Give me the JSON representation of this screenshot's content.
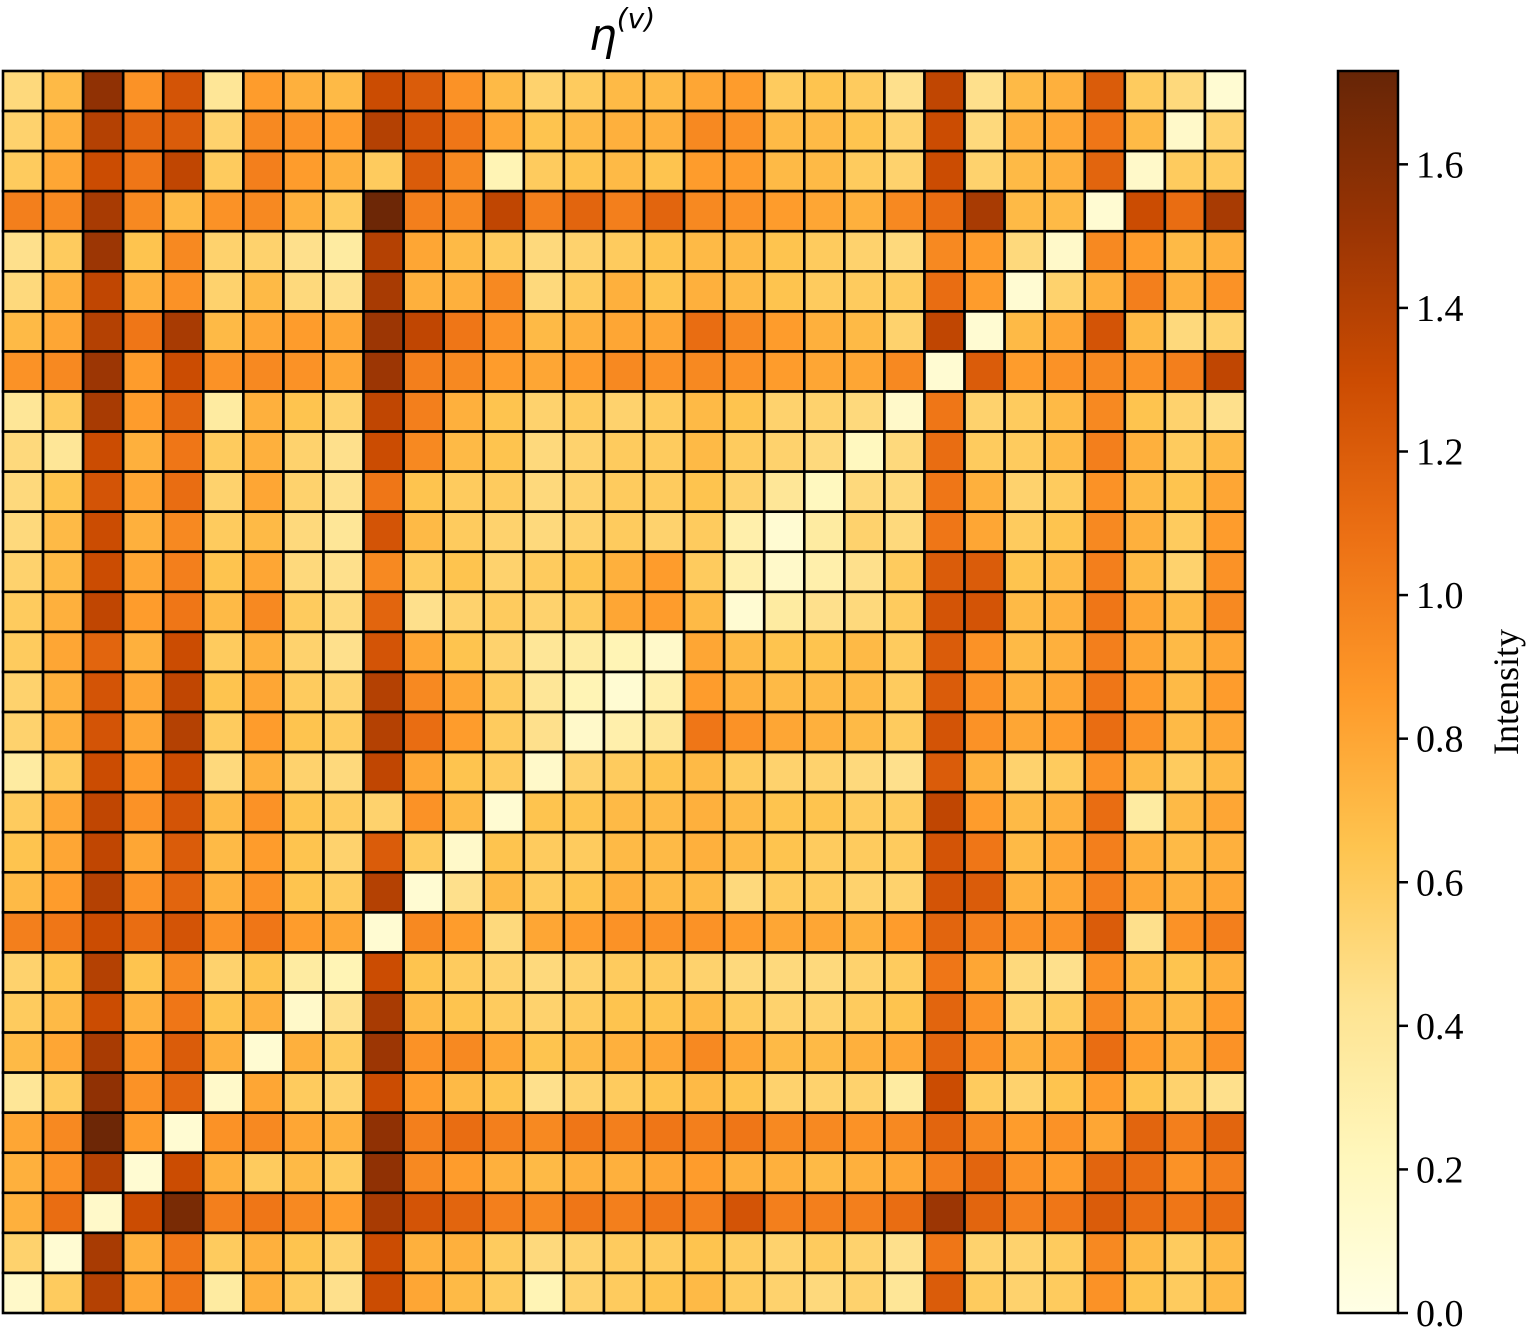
{
  "chart_data": {
    "type": "heatmap",
    "title": "η(v)",
    "title_main": "η",
    "title_sup": "(v)",
    "rows": 31,
    "cols": 31,
    "vmin": 0.0,
    "vmax": 1.73,
    "colormap": "YlOrBr",
    "colorbar": {
      "label": "Intensity",
      "ticks": [
        0.0,
        0.2,
        0.4,
        0.6,
        0.8,
        1.0,
        1.2,
        1.4,
        1.6
      ],
      "tick_labels": [
        "0.0",
        "0.2",
        "0.4",
        "0.6",
        "0.8",
        "1.0",
        "1.2",
        "1.4",
        "1.6"
      ]
    },
    "values": [
      [
        0.5,
        0.7,
        1.55,
        0.9,
        1.25,
        0.4,
        0.85,
        0.75,
        0.7,
        1.3,
        1.2,
        0.9,
        0.7,
        0.55,
        0.6,
        0.7,
        0.7,
        0.8,
        0.85,
        0.6,
        0.65,
        0.6,
        0.45,
        1.35,
        0.45,
        0.7,
        0.75,
        1.2,
        0.6,
        0.5,
        0.1
      ],
      [
        0.55,
        0.75,
        1.4,
        1.15,
        1.2,
        0.55,
        0.95,
        0.9,
        0.85,
        1.4,
        1.25,
        1.05,
        0.8,
        0.65,
        0.7,
        0.75,
        0.75,
        0.95,
        0.9,
        0.7,
        0.7,
        0.65,
        0.55,
        1.3,
        0.5,
        0.75,
        0.8,
        1.05,
        0.7,
        0.15,
        0.55
      ],
      [
        0.6,
        0.8,
        1.3,
        1.05,
        1.35,
        0.6,
        1.0,
        0.85,
        0.75,
        0.6,
        1.2,
        0.95,
        0.25,
        0.6,
        0.65,
        0.7,
        0.65,
        0.85,
        0.85,
        0.7,
        0.7,
        0.6,
        0.55,
        1.3,
        0.55,
        0.7,
        0.75,
        1.15,
        0.15,
        0.6,
        0.6
      ],
      [
        1.0,
        0.95,
        1.45,
        0.95,
        0.7,
        0.9,
        0.95,
        0.75,
        0.6,
        1.7,
        1.0,
        0.95,
        1.35,
        1.0,
        1.15,
        1.0,
        1.15,
        0.95,
        0.9,
        0.85,
        0.8,
        0.75,
        0.95,
        1.1,
        1.45,
        0.7,
        0.7,
        0.1,
        1.3,
        1.1,
        1.45
      ],
      [
        0.45,
        0.6,
        1.5,
        0.65,
        0.95,
        0.55,
        0.55,
        0.45,
        0.35,
        1.4,
        0.8,
        0.7,
        0.6,
        0.5,
        0.55,
        0.6,
        0.65,
        0.7,
        0.7,
        0.65,
        0.6,
        0.55,
        0.5,
        0.95,
        0.85,
        0.5,
        0.15,
        0.95,
        0.85,
        0.7,
        0.75
      ],
      [
        0.5,
        0.75,
        1.35,
        0.75,
        0.9,
        0.55,
        0.7,
        0.5,
        0.45,
        1.45,
        0.75,
        0.75,
        0.95,
        0.5,
        0.6,
        0.75,
        0.65,
        0.75,
        0.7,
        0.65,
        0.6,
        0.6,
        0.6,
        1.1,
        0.85,
        0.1,
        0.55,
        0.75,
        1.0,
        0.75,
        0.9
      ],
      [
        0.7,
        0.8,
        1.4,
        1.05,
        1.45,
        0.7,
        0.8,
        0.85,
        0.8,
        1.5,
        1.35,
        1.05,
        0.9,
        0.7,
        0.75,
        0.8,
        0.8,
        1.1,
        0.95,
        0.85,
        0.75,
        0.7,
        0.55,
        1.35,
        0.1,
        0.7,
        0.8,
        1.25,
        0.7,
        0.5,
        0.55
      ],
      [
        0.9,
        0.95,
        1.5,
        0.85,
        1.3,
        0.9,
        0.95,
        0.9,
        0.8,
        1.5,
        1.0,
        0.95,
        0.85,
        0.8,
        0.85,
        0.95,
        0.9,
        0.95,
        0.9,
        0.85,
        0.8,
        0.8,
        0.95,
        0.1,
        1.2,
        0.85,
        0.9,
        0.95,
        0.9,
        1.0,
        1.35
      ],
      [
        0.4,
        0.6,
        1.45,
        0.85,
        1.15,
        0.35,
        0.75,
        0.65,
        0.55,
        1.35,
        1.0,
        0.75,
        0.65,
        0.55,
        0.6,
        0.55,
        0.6,
        0.7,
        0.65,
        0.55,
        0.55,
        0.5,
        0.15,
        1.05,
        0.55,
        0.6,
        0.7,
        0.95,
        0.65,
        0.55,
        0.45
      ],
      [
        0.5,
        0.4,
        1.3,
        0.75,
        1.05,
        0.6,
        0.75,
        0.55,
        0.45,
        1.3,
        0.95,
        0.7,
        0.65,
        0.5,
        0.55,
        0.6,
        0.6,
        0.7,
        0.6,
        0.55,
        0.5,
        0.2,
        0.5,
        1.1,
        0.6,
        0.6,
        0.7,
        1.0,
        0.75,
        0.6,
        0.7
      ],
      [
        0.5,
        0.65,
        1.25,
        0.8,
        1.1,
        0.55,
        0.8,
        0.55,
        0.45,
        1.05,
        0.65,
        0.6,
        0.6,
        0.5,
        0.55,
        0.6,
        0.6,
        0.65,
        0.55,
        0.4,
        0.2,
        0.5,
        0.5,
        1.05,
        0.75,
        0.55,
        0.6,
        0.9,
        0.7,
        0.65,
        0.8
      ],
      [
        0.5,
        0.7,
        1.3,
        0.75,
        0.95,
        0.6,
        0.7,
        0.5,
        0.4,
        1.25,
        0.7,
        0.6,
        0.55,
        0.5,
        0.55,
        0.6,
        0.55,
        0.6,
        0.3,
        0.1,
        0.35,
        0.55,
        0.5,
        1.05,
        0.8,
        0.6,
        0.65,
        0.95,
        0.75,
        0.6,
        0.85
      ],
      [
        0.55,
        0.7,
        1.3,
        0.8,
        1.0,
        0.65,
        0.8,
        0.5,
        0.45,
        0.95,
        0.6,
        0.65,
        0.55,
        0.6,
        0.65,
        0.75,
        0.85,
        0.6,
        0.3,
        0.15,
        0.3,
        0.45,
        0.6,
        1.2,
        1.2,
        0.65,
        0.7,
        1.0,
        0.7,
        0.55,
        0.9
      ],
      [
        0.6,
        0.75,
        1.35,
        0.85,
        1.05,
        0.7,
        0.95,
        0.6,
        0.5,
        1.15,
        0.45,
        0.55,
        0.6,
        0.55,
        0.6,
        0.8,
        0.85,
        0.7,
        0.1,
        0.35,
        0.45,
        0.5,
        0.6,
        1.25,
        1.25,
        0.7,
        0.75,
        1.05,
        0.8,
        0.7,
        0.95
      ],
      [
        0.6,
        0.8,
        1.15,
        0.75,
        1.3,
        0.6,
        0.75,
        0.55,
        0.45,
        1.25,
        0.8,
        0.65,
        0.55,
        0.4,
        0.35,
        0.25,
        0.15,
        0.8,
        0.7,
        0.65,
        0.65,
        0.7,
        0.6,
        1.2,
        0.9,
        0.7,
        0.75,
        1.0,
        0.8,
        0.7,
        0.8
      ],
      [
        0.55,
        0.75,
        1.25,
        0.8,
        1.35,
        0.65,
        0.8,
        0.6,
        0.55,
        1.4,
        0.95,
        0.8,
        0.6,
        0.4,
        0.25,
        0.1,
        0.3,
        0.85,
        0.75,
        0.7,
        0.7,
        0.7,
        0.6,
        1.2,
        0.9,
        0.75,
        0.8,
        1.05,
        0.85,
        0.7,
        0.85
      ],
      [
        0.55,
        0.75,
        1.25,
        0.8,
        1.4,
        0.6,
        0.85,
        0.65,
        0.6,
        1.4,
        1.1,
        0.85,
        0.6,
        0.45,
        0.15,
        0.3,
        0.4,
        1.05,
        0.9,
        0.8,
        0.75,
        0.7,
        0.6,
        1.25,
        0.9,
        0.8,
        0.85,
        1.1,
        0.9,
        0.7,
        0.8
      ],
      [
        0.35,
        0.6,
        1.3,
        0.85,
        1.3,
        0.5,
        0.75,
        0.55,
        0.5,
        1.35,
        0.8,
        0.65,
        0.6,
        0.15,
        0.55,
        0.6,
        0.65,
        0.7,
        0.6,
        0.55,
        0.55,
        0.5,
        0.45,
        1.2,
        0.75,
        0.55,
        0.6,
        0.9,
        0.7,
        0.6,
        0.7
      ],
      [
        0.6,
        0.8,
        1.35,
        0.9,
        1.25,
        0.7,
        0.9,
        0.65,
        0.6,
        0.55,
        0.9,
        0.7,
        0.1,
        0.65,
        0.65,
        0.7,
        0.7,
        0.75,
        0.7,
        0.65,
        0.65,
        0.6,
        0.6,
        1.35,
        0.85,
        0.7,
        0.75,
        1.1,
        0.35,
        0.7,
        0.8
      ],
      [
        0.65,
        0.8,
        1.35,
        0.8,
        1.2,
        0.7,
        0.85,
        0.65,
        0.55,
        1.2,
        0.6,
        0.15,
        0.65,
        0.6,
        0.6,
        0.7,
        0.7,
        0.75,
        0.7,
        0.65,
        0.6,
        0.6,
        0.6,
        1.25,
        1.05,
        0.7,
        0.8,
        1.0,
        0.75,
        0.7,
        0.75
      ],
      [
        0.7,
        0.85,
        1.4,
        0.9,
        1.15,
        0.75,
        0.9,
        0.65,
        0.6,
        1.4,
        0.1,
        0.45,
        0.7,
        0.6,
        0.65,
        0.75,
        0.7,
        0.7,
        0.5,
        0.6,
        0.6,
        0.55,
        0.55,
        1.25,
        1.2,
        0.75,
        0.8,
        1.0,
        0.8,
        0.75,
        0.8
      ],
      [
        1.0,
        1.05,
        1.3,
        1.1,
        1.25,
        0.9,
        1.05,
        0.85,
        0.8,
        0.1,
        0.95,
        0.85,
        0.5,
        0.8,
        0.85,
        0.9,
        0.9,
        0.9,
        0.85,
        0.8,
        0.8,
        0.75,
        0.85,
        1.15,
        1.0,
        0.9,
        0.9,
        1.2,
        0.45,
        0.9,
        1.0
      ],
      [
        0.55,
        0.65,
        1.4,
        0.65,
        0.95,
        0.55,
        0.65,
        0.35,
        0.25,
        1.3,
        0.65,
        0.6,
        0.55,
        0.5,
        0.55,
        0.6,
        0.6,
        0.55,
        0.5,
        0.5,
        0.5,
        0.55,
        0.6,
        1.05,
        0.8,
        0.5,
        0.45,
        0.9,
        0.7,
        0.65,
        0.75
      ],
      [
        0.6,
        0.7,
        1.3,
        0.75,
        1.05,
        0.65,
        0.75,
        0.15,
        0.45,
        1.45,
        0.7,
        0.65,
        0.6,
        0.55,
        0.6,
        0.65,
        0.65,
        0.7,
        0.6,
        0.55,
        0.55,
        0.6,
        0.65,
        1.15,
        0.9,
        0.55,
        0.6,
        0.95,
        0.75,
        0.7,
        0.85
      ],
      [
        0.7,
        0.8,
        1.45,
        0.85,
        1.2,
        0.75,
        0.1,
        0.75,
        0.6,
        1.5,
        0.9,
        0.95,
        0.8,
        0.65,
        0.7,
        0.75,
        0.8,
        0.95,
        0.8,
        0.7,
        0.7,
        0.75,
        0.8,
        1.15,
        0.9,
        0.75,
        0.8,
        1.1,
        0.85,
        0.75,
        0.9
      ],
      [
        0.4,
        0.6,
        1.55,
        0.9,
        1.15,
        0.15,
        0.8,
        0.6,
        0.55,
        1.3,
        0.85,
        0.7,
        0.65,
        0.45,
        0.55,
        0.6,
        0.65,
        0.7,
        0.65,
        0.55,
        0.55,
        0.55,
        0.35,
        1.3,
        0.6,
        0.55,
        0.65,
        0.85,
        0.65,
        0.55,
        0.45
      ],
      [
        0.8,
        0.95,
        1.7,
        0.85,
        0.1,
        0.9,
        0.95,
        0.8,
        0.75,
        1.55,
        1.0,
        1.1,
        1.0,
        0.95,
        1.05,
        1.0,
        1.05,
        1.0,
        1.05,
        0.95,
        0.95,
        0.9,
        0.95,
        1.15,
        0.95,
        0.85,
        0.9,
        0.8,
        1.15,
        1.0,
        1.15
      ],
      [
        0.75,
        0.9,
        1.4,
        0.1,
        1.3,
        0.75,
        0.6,
        0.7,
        0.6,
        1.55,
        0.95,
        0.85,
        0.75,
        0.7,
        0.75,
        0.75,
        0.8,
        0.85,
        0.75,
        0.75,
        0.7,
        0.75,
        0.8,
        1.0,
        1.15,
        0.9,
        0.85,
        1.15,
        1.1,
        0.9,
        1.0
      ],
      [
        0.75,
        1.1,
        0.15,
        1.3,
        1.65,
        1.0,
        1.05,
        0.95,
        0.85,
        1.45,
        1.25,
        1.15,
        1.0,
        0.95,
        1.05,
        1.0,
        1.05,
        1.0,
        1.25,
        1.0,
        1.0,
        1.0,
        1.1,
        1.5,
        1.15,
        1.0,
        1.05,
        1.2,
        1.1,
        1.05,
        1.1
      ],
      [
        0.55,
        0.1,
        1.45,
        0.75,
        1.05,
        0.6,
        0.75,
        0.65,
        0.55,
        1.3,
        0.75,
        0.75,
        0.6,
        0.5,
        0.55,
        0.6,
        0.6,
        0.65,
        0.6,
        0.55,
        0.6,
        0.55,
        0.45,
        1.05,
        0.55,
        0.55,
        0.6,
        0.95,
        0.7,
        0.6,
        0.7
      ],
      [
        0.15,
        0.6,
        1.4,
        0.8,
        1.05,
        0.35,
        0.75,
        0.6,
        0.45,
        1.3,
        0.8,
        0.7,
        0.6,
        0.25,
        0.55,
        0.6,
        0.65,
        0.7,
        0.6,
        0.55,
        0.5,
        0.55,
        0.4,
        1.2,
        0.6,
        0.55,
        0.6,
        0.9,
        0.65,
        0.6,
        0.7
      ]
    ]
  }
}
